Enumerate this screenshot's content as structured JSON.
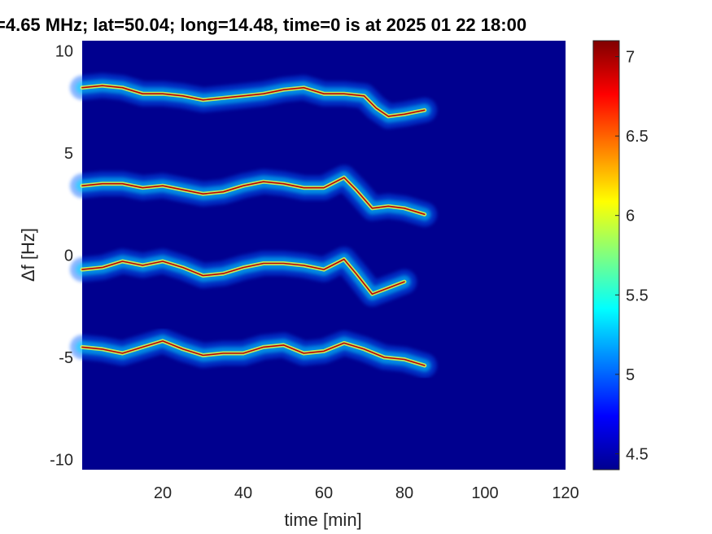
{
  "chart_data": {
    "type": "heatmap",
    "title": "=4.65 MHz;  lat=50.04; long=14.48, time=0 is at 2025 01 22 18:00",
    "xlabel": "time [min]",
    "ylabel": "Δf [Hz]",
    "xlim": [
      0,
      120
    ],
    "ylim": [
      -10.5,
      10.5
    ],
    "xticks": [
      20,
      40,
      60,
      80,
      100,
      120
    ],
    "xtick_labels": [
      "20",
      "40",
      "60",
      "80",
      "100",
      "120"
    ],
    "yticks": [
      10,
      5,
      0,
      -5,
      -10
    ],
    "ytick_labels": [
      "10",
      "5",
      "0",
      "-5",
      "-10"
    ],
    "colorbar": {
      "range": [
        4.4,
        7.1
      ],
      "ticks": [
        4.5,
        5,
        5.5,
        6,
        6.5,
        7
      ],
      "tick_labels": [
        "4.5",
        "5",
        "5.5",
        "6",
        "6.5",
        "7"
      ],
      "colormap": "jet"
    },
    "background_color": "#00008f",
    "traces": [
      {
        "x": [
          0,
          5,
          10,
          15,
          20,
          25,
          30,
          35,
          40,
          45,
          50,
          55,
          60,
          65,
          70,
          73,
          76,
          80,
          85
        ],
        "y": [
          8.2,
          8.3,
          8.2,
          7.9,
          7.9,
          7.8,
          7.6,
          7.7,
          7.8,
          7.9,
          8.1,
          8.2,
          7.9,
          7.9,
          7.8,
          7.2,
          6.8,
          6.9,
          7.1
        ]
      },
      {
        "x": [
          0,
          5,
          10,
          15,
          20,
          25,
          30,
          35,
          40,
          45,
          50,
          55,
          60,
          65,
          68,
          72,
          76,
          80,
          85
        ],
        "y": [
          3.4,
          3.5,
          3.5,
          3.3,
          3.4,
          3.2,
          3.0,
          3.1,
          3.4,
          3.6,
          3.5,
          3.3,
          3.3,
          3.8,
          3.2,
          2.3,
          2.4,
          2.3,
          2.0
        ]
      },
      {
        "x": [
          0,
          5,
          10,
          15,
          20,
          25,
          30,
          35,
          40,
          45,
          50,
          55,
          60,
          65,
          68,
          72,
          76,
          80
        ],
        "y": [
          -0.7,
          -0.6,
          -0.3,
          -0.5,
          -0.3,
          -0.6,
          -1.0,
          -0.9,
          -0.6,
          -0.4,
          -0.4,
          -0.5,
          -0.7,
          -0.2,
          -0.9,
          -1.9,
          -1.6,
          -1.3
        ]
      },
      {
        "x": [
          0,
          5,
          10,
          15,
          20,
          25,
          30,
          35,
          40,
          45,
          50,
          55,
          60,
          65,
          70,
          75,
          80,
          85
        ],
        "y": [
          -4.5,
          -4.6,
          -4.8,
          -4.5,
          -4.2,
          -4.6,
          -4.9,
          -4.8,
          -4.8,
          -4.5,
          -4.4,
          -4.8,
          -4.7,
          -4.3,
          -4.6,
          -5.0,
          -5.1,
          -5.4
        ]
      }
    ]
  }
}
